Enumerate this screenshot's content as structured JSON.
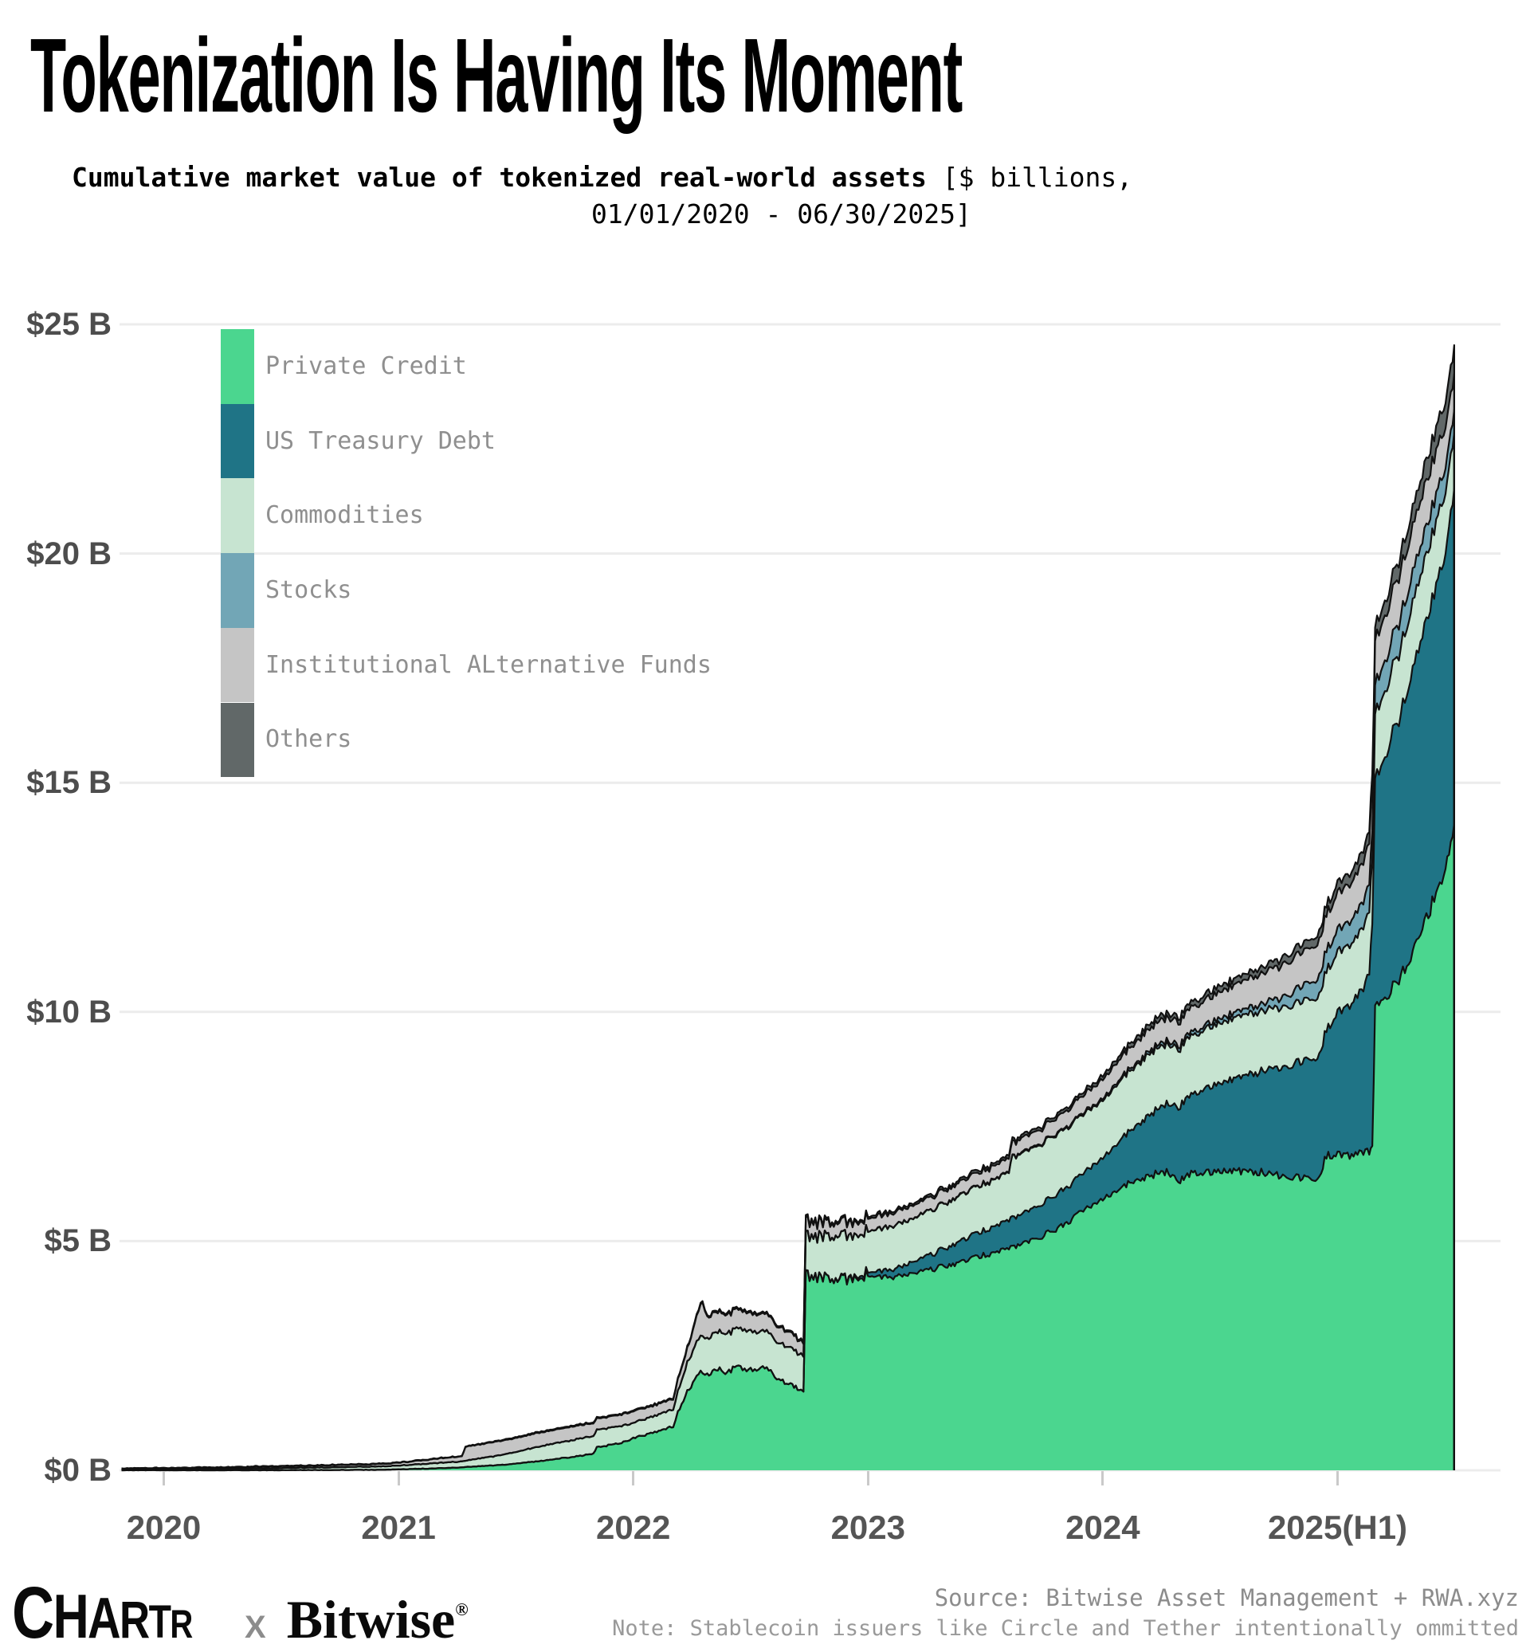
{
  "header": {
    "title": "Tokenization Is Having Its Moment",
    "subtitle_bold": "Cumulative market value of tokenized real-world assets",
    "subtitle_light": " [$ billions,",
    "subtitle_line2": "01/01/2020 - 06/30/2025]"
  },
  "chart_data": {
    "type": "area",
    "stacked": true,
    "title": "Tokenization Is Having Its Moment",
    "subtitle": "Cumulative market value of tokenized real-world assets [$ billions, 01/01/2020 - 06/30/2025]",
    "ylabel": "$ billions",
    "ylim": [
      0,
      25
    ],
    "grid": "horizontal",
    "legend_position": "top-left vertical bar",
    "y_ticks": [
      {
        "value": 25,
        "label": "$25 B"
      },
      {
        "value": 20,
        "label": "$20 B"
      },
      {
        "value": 15,
        "label": "$15 B"
      },
      {
        "value": 10,
        "label": "$10 B"
      },
      {
        "value": 5,
        "label": "$5 B"
      },
      {
        "value": 0,
        "label": "$0 B"
      }
    ],
    "x_ticks": [
      {
        "year": 2020,
        "label": "2020"
      },
      {
        "year": 2021,
        "label": "2021"
      },
      {
        "year": 2022,
        "label": "2022"
      },
      {
        "year": 2023,
        "label": "2023"
      },
      {
        "year": 2024,
        "label": "2024"
      },
      {
        "year": 2025,
        "label": "2025(H1)"
      }
    ],
    "series": [
      {
        "name": "Private Credit",
        "color": "#4bd68f"
      },
      {
        "name": "US Treasury Debt",
        "color": "#1f7486"
      },
      {
        "name": "Commodities",
        "color": "#c7e4d1"
      },
      {
        "name": "Stocks",
        "color": "#72a6b6"
      },
      {
        "name": "Institutional ALternative Funds",
        "color": "#c5c5c5"
      },
      {
        "name": "Others",
        "color": "#616868"
      }
    ],
    "keyframes_format": "[decimal_year, PrivateCredit, USTreasuryDebt, Commodities, Stocks, InstitutionalAlternativeFunds, Others] band thickness in $B",
    "keyframes": [
      [
        2019.82,
        0.0,
        0,
        0.02,
        0,
        0.015,
        0.005
      ],
      [
        2020.0,
        0.0,
        0,
        0.025,
        0,
        0.02,
        0.005
      ],
      [
        2020.3,
        0.0,
        0,
        0.03,
        0,
        0.03,
        0.01
      ],
      [
        2020.6,
        0.005,
        0,
        0.05,
        0,
        0.04,
        0.01
      ],
      [
        2020.9,
        0.01,
        0,
        0.07,
        0,
        0.05,
        0.01
      ],
      [
        2021.0,
        0.02,
        0,
        0.08,
        0,
        0.06,
        0.01
      ],
      [
        2021.15,
        0.04,
        0,
        0.11,
        0,
        0.09,
        0.01
      ],
      [
        2021.27,
        0.06,
        0,
        0.13,
        0,
        0.11,
        0.01
      ],
      [
        2021.285,
        0.07,
        0,
        0.14,
        0,
        0.3,
        0.01
      ],
      [
        2021.45,
        0.12,
        0,
        0.22,
        0,
        0.31,
        0.015
      ],
      [
        2021.6,
        0.2,
        0,
        0.32,
        0,
        0.3,
        0.02
      ],
      [
        2021.75,
        0.3,
        0,
        0.37,
        0,
        0.29,
        0.02
      ],
      [
        2021.83,
        0.36,
        0,
        0.38,
        0,
        0.28,
        0.02
      ],
      [
        2021.845,
        0.5,
        0,
        0.38,
        0,
        0.24,
        0.02
      ],
      [
        2021.95,
        0.6,
        0,
        0.37,
        0,
        0.25,
        0.02
      ],
      [
        2022.0,
        0.7,
        0,
        0.33,
        0,
        0.25,
        0.02
      ],
      [
        2022.1,
        0.84,
        0,
        0.36,
        0,
        0.23,
        0.02
      ],
      [
        2022.17,
        0.95,
        0,
        0.38,
        0,
        0.23,
        0.025
      ],
      [
        2022.19,
        1.28,
        0,
        0.45,
        0,
        0.26,
        0.025
      ],
      [
        2022.23,
        1.7,
        0,
        0.62,
        0,
        0.3,
        0.03
      ],
      [
        2022.27,
        2.05,
        0,
        0.74,
        0,
        0.55,
        0.03
      ],
      [
        2022.295,
        2.15,
        0,
        0.8,
        0,
        0.73,
        0.03
      ],
      [
        2022.315,
        2.07,
        0,
        0.79,
        0,
        0.48,
        0.03
      ],
      [
        2022.36,
        2.22,
        0,
        0.83,
        0,
        0.43,
        0.03
      ],
      [
        2022.4,
        2.1,
        0,
        0.85,
        0,
        0.41,
        0.03
      ],
      [
        2022.44,
        2.28,
        0,
        0.83,
        0,
        0.41,
        0.03
      ],
      [
        2022.5,
        2.18,
        0,
        0.85,
        0,
        0.39,
        0.03
      ],
      [
        2022.56,
        2.23,
        0,
        0.8,
        0,
        0.38,
        0.03
      ],
      [
        2022.62,
        2.0,
        0,
        0.79,
        0,
        0.35,
        0.03
      ],
      [
        2022.67,
        1.88,
        0,
        0.8,
        0,
        0.32,
        0.03
      ],
      [
        2022.715,
        1.75,
        0,
        0.78,
        0,
        0.29,
        0.03
      ],
      [
        2022.725,
        1.73,
        0,
        0.77,
        0,
        0.28,
        0.03
      ],
      [
        2022.735,
        4.25,
        0,
        0.85,
        0,
        0.31,
        0.04
      ],
      [
        2022.8,
        4.22,
        0,
        0.9,
        0,
        0.3,
        0.04
      ],
      [
        2022.87,
        4.13,
        0.01,
        0.94,
        0,
        0.29,
        0.04
      ],
      [
        2022.95,
        4.22,
        0.04,
        0.91,
        0,
        0.28,
        0.04
      ],
      [
        2023.0,
        4.25,
        0.08,
        0.9,
        0,
        0.28,
        0.045
      ],
      [
        2023.1,
        4.2,
        0.16,
        0.94,
        0,
        0.28,
        0.045
      ],
      [
        2023.2,
        4.3,
        0.26,
        0.95,
        0.005,
        0.28,
        0.05
      ],
      [
        2023.3,
        4.42,
        0.36,
        0.97,
        0.005,
        0.28,
        0.05
      ],
      [
        2023.4,
        4.55,
        0.46,
        1.0,
        0.01,
        0.28,
        0.05
      ],
      [
        2023.5,
        4.7,
        0.55,
        1.02,
        0.01,
        0.28,
        0.055
      ],
      [
        2023.6,
        4.85,
        0.62,
        1.05,
        0.01,
        0.29,
        0.06
      ],
      [
        2023.615,
        4.87,
        0.63,
        1.33,
        0.015,
        0.3,
        0.06
      ],
      [
        2023.7,
        5.02,
        0.68,
        1.32,
        0.02,
        0.31,
        0.06
      ],
      [
        2023.8,
        5.25,
        0.75,
        1.31,
        0.025,
        0.33,
        0.07
      ],
      [
        2023.9,
        5.6,
        0.8,
        1.28,
        0.03,
        0.37,
        0.07
      ],
      [
        2024.0,
        5.95,
        0.9,
        1.26,
        0.04,
        0.42,
        0.08
      ],
      [
        2024.1,
        6.22,
        1.1,
        1.3,
        0.05,
        0.45,
        0.09
      ],
      [
        2024.2,
        6.45,
        1.33,
        1.34,
        0.06,
        0.49,
        0.1
      ],
      [
        2024.28,
        6.5,
        1.5,
        1.3,
        0.07,
        0.51,
        0.1
      ],
      [
        2024.33,
        6.32,
        1.62,
        1.26,
        0.08,
        0.52,
        0.11
      ],
      [
        2024.36,
        6.45,
        1.7,
        1.28,
        0.08,
        0.53,
        0.11
      ],
      [
        2024.45,
        6.52,
        1.85,
        1.3,
        0.09,
        0.56,
        0.12
      ],
      [
        2024.55,
        6.55,
        2.0,
        1.32,
        0.11,
        0.6,
        0.13
      ],
      [
        2024.65,
        6.52,
        2.18,
        1.32,
        0.14,
        0.65,
        0.14
      ],
      [
        2024.75,
        6.45,
        2.35,
        1.31,
        0.2,
        0.7,
        0.15
      ],
      [
        2024.85,
        6.38,
        2.55,
        1.3,
        0.33,
        0.74,
        0.17
      ],
      [
        2024.93,
        6.4,
        2.68,
        1.3,
        0.42,
        0.77,
        0.19
      ],
      [
        2024.945,
        6.85,
        2.72,
        1.3,
        0.44,
        0.78,
        0.2
      ],
      [
        2025.0,
        6.9,
        3.08,
        1.32,
        0.49,
        0.8,
        0.22
      ],
      [
        2025.06,
        6.86,
        3.3,
        1.3,
        0.52,
        0.82,
        0.23
      ],
      [
        2025.11,
        6.92,
        3.6,
        1.33,
        0.56,
        0.86,
        0.25
      ],
      [
        2025.135,
        6.96,
        3.92,
        1.36,
        0.6,
        0.9,
        0.26
      ],
      [
        2025.148,
        7.0,
        4.85,
        1.4,
        0.63,
        0.95,
        0.28
      ],
      [
        2025.16,
        10.1,
        4.95,
        1.42,
        0.64,
        0.96,
        0.3
      ],
      [
        2025.21,
        10.35,
        5.35,
        1.43,
        0.66,
        0.98,
        0.32
      ],
      [
        2025.27,
        10.8,
        5.75,
        1.45,
        0.68,
        1.0,
        0.36
      ],
      [
        2025.32,
        11.25,
        6.15,
        1.45,
        0.66,
        1.0,
        0.4
      ],
      [
        2025.37,
        11.95,
        6.45,
        1.43,
        0.63,
        0.98,
        0.45
      ],
      [
        2025.42,
        12.6,
        6.7,
        1.4,
        0.6,
        0.95,
        0.5
      ],
      [
        2025.46,
        13.2,
        6.95,
        1.33,
        0.55,
        0.88,
        0.55
      ],
      [
        2025.49,
        13.85,
        7.2,
        1.23,
        0.51,
        0.79,
        0.6
      ],
      [
        2025.497,
        13.95,
        7.25,
        1.2,
        0.5,
        0.78,
        0.62
      ]
    ],
    "end_values_billions": {
      "Private Credit": 13.95,
      "US Treasury Debt": 7.25,
      "Commodities": 1.2,
      "Stocks": 0.5,
      "Institutional ALternative Funds": 0.78,
      "Others": 0.62,
      "total": 24.3
    }
  },
  "footer": {
    "logo_chartr": "CHARTR",
    "logo_x": "X",
    "logo_bitwise": "Bitwise",
    "logo_reg": "®",
    "source": "Source: Bitwise Asset Management + RWA.xyz",
    "note": "Note: Stablecoin issuers like Circle and Tether intentionally ommitted"
  }
}
